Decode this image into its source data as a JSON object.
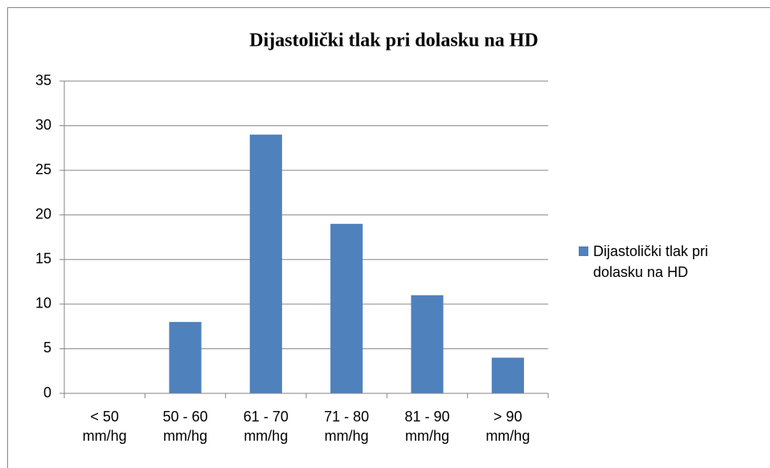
{
  "chart_data": {
    "type": "bar",
    "title": "Dijastolički tlak pri dolasku na HD",
    "categories": [
      "< 50 mm/hg",
      "50 - 60 mm/hg",
      "61 - 70 mm/hg",
      "71 - 80 mm/hg",
      "81 - 90 mm/hg",
      "> 90 mm/hg"
    ],
    "series": [
      {
        "name": "Dijastolički tlak pri dolasku na HD",
        "color": "#4f81bd",
        "values": [
          0,
          8,
          29,
          19,
          11,
          4
        ]
      }
    ],
    "ylim": [
      0,
      35
    ],
    "yticks": [
      0,
      5,
      10,
      15,
      20,
      25,
      30,
      35
    ],
    "grid": true,
    "legend": "right"
  }
}
